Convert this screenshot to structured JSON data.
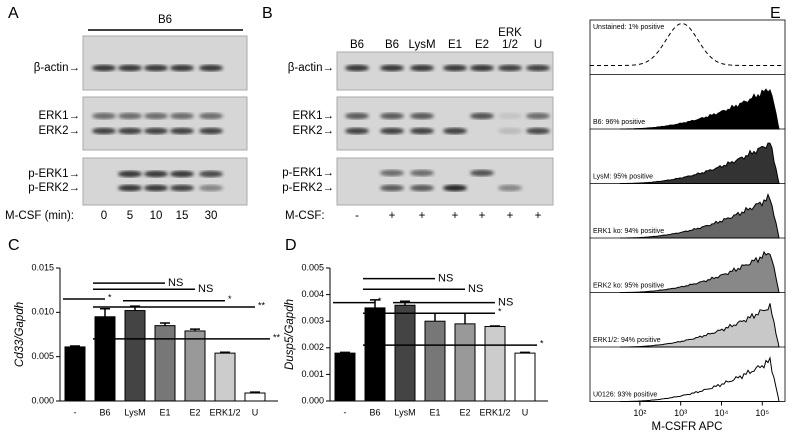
{
  "panel_a": {
    "label": "A",
    "group": "B6",
    "rows": [
      "β-actin→",
      "ERK1→",
      "ERK2→",
      "p-ERK1→",
      "p-ERK2→"
    ],
    "x_label": "M-CSF (min):",
    "lanes": [
      "0",
      "5",
      "10",
      "15",
      "30"
    ]
  },
  "panel_b": {
    "label": "B",
    "rows": [
      "β-actin→",
      "ERK1→",
      "ERK2→",
      "p-ERK1→",
      "p-ERK2→"
    ],
    "lanes": [
      "B6",
      "B6",
      "LysM",
      "E1",
      "E2",
      [
        "ERK",
        "1/2"
      ],
      "U"
    ],
    "x_label": "M-CSF:",
    "treatments": [
      "-",
      "+",
      "+",
      "+",
      "+",
      "+",
      "+"
    ]
  },
  "chart_data": [
    {
      "type": "bar",
      "label": "C",
      "ylabel": "Cd33/Gapdh",
      "categories": [
        "-",
        "B6",
        "LysM",
        "E1",
        "E2",
        "ERK1/2",
        "U"
      ],
      "values": [
        0.0061,
        0.0095,
        0.0102,
        0.0085,
        0.0079,
        0.0054,
        0.0009
      ],
      "errors": [
        0.0001,
        0.0009,
        0.0005,
        0.0003,
        0.0002,
        0.0001,
        0.0001
      ],
      "colors": [
        "#000000",
        "#000000",
        "#444444",
        "#777777",
        "#999999",
        "#cccccc",
        "#ffffff"
      ],
      "ylim": [
        0,
        0.015
      ],
      "yticks": [
        {
          "value": 0,
          "label": "0.000"
        },
        {
          "value": 0.005,
          "label": "0.005"
        },
        {
          "value": 0.01,
          "label": "0.010"
        },
        {
          "value": 0.015,
          "label": "0.015"
        }
      ],
      "comparisons": [
        {
          "from": 0,
          "to": 1,
          "y": 0.0115,
          "label": "*"
        },
        {
          "from": 1,
          "to": 3,
          "y": 0.0133,
          "label": "NS"
        },
        {
          "from": 1,
          "to": 4,
          "y": 0.0126,
          "label": "NS"
        },
        {
          "from": 2,
          "to": 5,
          "y": 0.0113,
          "label": "*"
        },
        {
          "from": 1,
          "to": 6,
          "y": 0.0106,
          "label": "**"
        },
        {
          "from": 1,
          "to": 6.5,
          "y": 0.007,
          "label": "**"
        }
      ]
    },
    {
      "type": "bar",
      "label": "D",
      "ylabel": "Dusp5/Gapdh",
      "categories": [
        "-",
        "B6",
        "LysM",
        "E1",
        "E2",
        "ERK1/2",
        "U"
      ],
      "values": [
        0.0018,
        0.0035,
        0.0036,
        0.003,
        0.0029,
        0.0028,
        0.0018
      ],
      "errors": [
        3e-05,
        0.0003,
        0.00015,
        0.0003,
        0.0004,
        2e-05,
        3e-05
      ],
      "colors": [
        "#000000",
        "#000000",
        "#444444",
        "#777777",
        "#999999",
        "#cccccc",
        "#ffffff"
      ],
      "ylim": [
        0,
        0.005
      ],
      "yticks": [
        {
          "value": 0,
          "label": "0.000"
        },
        {
          "value": 0.001,
          "label": "0.001"
        },
        {
          "value": 0.002,
          "label": "0.002"
        },
        {
          "value": 0.003,
          "label": "0.003"
        },
        {
          "value": 0.004,
          "label": "0.004"
        },
        {
          "value": 0.005,
          "label": "0.005"
        }
      ],
      "comparisons": [
        {
          "from": 0,
          "to": 1,
          "y": 0.0037,
          "label": "*"
        },
        {
          "from": 1,
          "to": 3,
          "y": 0.0046,
          "label": "NS"
        },
        {
          "from": 1,
          "to": 4,
          "y": 0.0042,
          "label": "NS"
        },
        {
          "from": 2,
          "to": 5,
          "y": 0.0037,
          "label": "NS"
        },
        {
          "from": 1,
          "to": 5,
          "y": 0.0033,
          "label": "*"
        },
        {
          "from": 1,
          "to": 6.4,
          "y": 0.0021,
          "label": "*"
        }
      ]
    }
  ],
  "panel_e": {
    "label": "E",
    "x_label": "M-CSFR APC",
    "log": true,
    "xlim": [
      6,
      360000
    ],
    "xticks": [
      {
        "value": 100,
        "label": "10²"
      },
      {
        "value": 1000,
        "label": "10³"
      },
      {
        "value": 10000,
        "label": "10⁴"
      },
      {
        "value": 100000,
        "label": "10⁵"
      }
    ],
    "histograms": [
      {
        "label": "Unstained: 1% positive",
        "fill": "none",
        "dashed": true
      },
      {
        "label": "B6: 96% positive",
        "fill": "#000000"
      },
      {
        "label": "LysM: 95% positive",
        "fill": "#333333"
      },
      {
        "label": "ERK1 ko: 94% positive",
        "fill": "#666666"
      },
      {
        "label": "ERK2 ko: 95% positive",
        "fill": "#888888"
      },
      {
        "label": "ERK1/2: 94% positive",
        "fill": "#c8c8c8"
      },
      {
        "label": "U0126: 93% positive",
        "fill": "#ffffff"
      }
    ]
  }
}
